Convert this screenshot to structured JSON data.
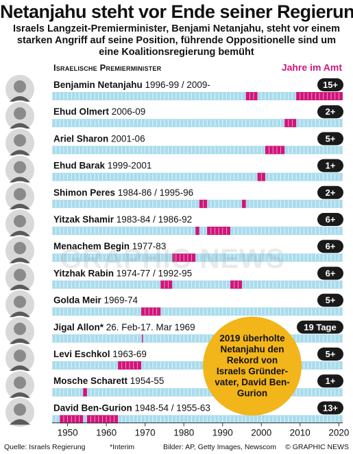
{
  "title": "Netanjahu steht vor Ende seiner Regierung",
  "subtitle": "Israels Langzeit-Premierminister, Benjami Netanjahu, steht vor einem starken Angriff auf seine Position, führende Oppositionelle sind um eine Koalitionsregierung bemüht",
  "section_label": "Israelische Premierminister",
  "legend_label": "Jahre im Amt",
  "watermark": "GRAPHIC NEWS",
  "callout": "2019 überholte Netanjahu den Rekord von Israels Gründer-vater, David Ben-Gurion",
  "footer": {
    "source": "Quelle: Israels Regierung",
    "interim": "*Interim",
    "credits": "Bilder: AP, Getty Images, Newscom",
    "copyright": "© GRAPHIC NEWS"
  },
  "colors": {
    "track": "#a9dcec",
    "track_tick": "#ffffff",
    "term": "#d0157a",
    "badge": "#1a1a1a",
    "callout": "#f2b51a",
    "axis": "#333333"
  },
  "chart_data": {
    "type": "bar",
    "orientation": "horizontal-timeline",
    "xlim": [
      1946,
      2021
    ],
    "x_ticks": [
      1950,
      1960,
      1970,
      1980,
      1990,
      2000,
      2010,
      2020
    ],
    "grid": false,
    "series": [
      {
        "name": "Benjamin Netanjahu",
        "years": "1996-99 / 2009-",
        "badge": "15+",
        "terms": [
          [
            1996,
            1999
          ],
          [
            2009,
            2021
          ]
        ]
      },
      {
        "name": "Ehud Olmert",
        "years": "2006-09",
        "badge": "2+",
        "terms": [
          [
            2006,
            2009
          ]
        ]
      },
      {
        "name": "Ariel Sharon",
        "years": "2001-06",
        "badge": "5+",
        "terms": [
          [
            2001,
            2006
          ]
        ]
      },
      {
        "name": "Ehud Barak",
        "years": "1999-2001",
        "badge": "1+",
        "terms": [
          [
            1999,
            2001
          ]
        ]
      },
      {
        "name": "Shimon Peres",
        "years": "1984-86 / 1995-96",
        "badge": "2+",
        "terms": [
          [
            1984,
            1986
          ],
          [
            1995,
            1996
          ]
        ]
      },
      {
        "name": "Yitzak Shamir",
        "years": "1983-84 / 1986-92",
        "badge": "6+",
        "terms": [
          [
            1983,
            1984
          ],
          [
            1986,
            1992
          ]
        ]
      },
      {
        "name": "Menachem Begin",
        "years": "1977-83",
        "badge": "6+",
        "terms": [
          [
            1977,
            1983
          ]
        ]
      },
      {
        "name": "Yitzhak Rabin",
        "years": "1974-77 / 1992-95",
        "badge": "6+",
        "terms": [
          [
            1974,
            1977
          ],
          [
            1992,
            1995
          ]
        ]
      },
      {
        "name": "Golda Meir",
        "years": "1969-74",
        "badge": "5+",
        "terms": [
          [
            1969,
            1974
          ]
        ]
      },
      {
        "name": "Jigal Allon*",
        "years": "26. Feb-17. Mar 1969",
        "badge": "19 Tage",
        "terms": [
          [
            1969.15,
            1969.21
          ]
        ]
      },
      {
        "name": "Levi Eschkol",
        "years": "1963-69",
        "badge": "5+",
        "terms": [
          [
            1963,
            1969
          ]
        ]
      },
      {
        "name": "Mosche Scharett",
        "years": "1954-55",
        "badge": "1+",
        "terms": [
          [
            1954,
            1955
          ]
        ]
      },
      {
        "name": "David Ben-Gurion",
        "years": "1948-54 / 1955-63",
        "badge": "13+",
        "terms": [
          [
            1948,
            1954
          ],
          [
            1955,
            1963
          ]
        ]
      }
    ]
  }
}
